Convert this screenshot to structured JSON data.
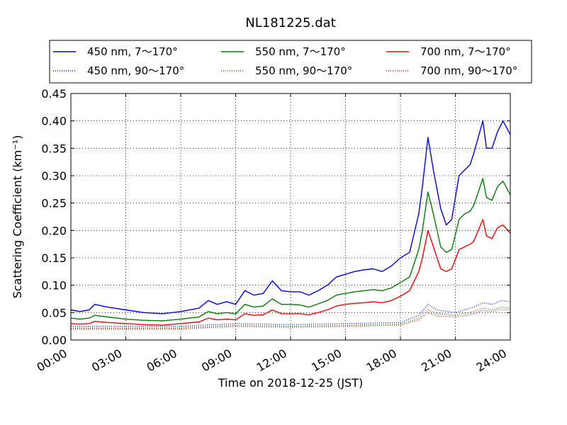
{
  "chart_data": {
    "type": "line",
    "title": "NL181225.dat",
    "xlabel": "Time on 2018-12-25 (JST)",
    "ylabel": "Scattering Coefficient (km⁻¹)",
    "xlim": [
      0,
      24
    ],
    "ylim": [
      0,
      0.45
    ],
    "grid": true,
    "legend_position": "top, above plot, 3 columns",
    "x_ticks": [
      0,
      3,
      6,
      9,
      12,
      15,
      18,
      21,
      24
    ],
    "x_tick_labels": [
      "00:00",
      "03:00",
      "06:00",
      "09:00",
      "12:00",
      "15:00",
      "18:00",
      "21:00",
      "24:00"
    ],
    "y_ticks": [
      0,
      0.05,
      0.1,
      0.15,
      0.2,
      0.25,
      0.3,
      0.35,
      0.4,
      0.45
    ],
    "y_tick_labels": [
      "0.00",
      "0.05",
      "0.10",
      "0.15",
      "0.20",
      "0.25",
      "0.30",
      "0.35",
      "0.40",
      "0.45"
    ],
    "series": [
      {
        "name": "450 nm, 7～170°",
        "color": "#0000ff",
        "style": "solid",
        "x": [
          0,
          0.5,
          1,
          1.3,
          2,
          3,
          4,
          5,
          6,
          7,
          7.5,
          8,
          8.5,
          9,
          9.5,
          10,
          10.5,
          11,
          11.5,
          12,
          12.5,
          13,
          13.5,
          14,
          14.5,
          15,
          15.5,
          16,
          16.5,
          17,
          17.5,
          18,
          18.5,
          19,
          19.2,
          19.5,
          19.8,
          20.2,
          20.5,
          20.8,
          21.2,
          21.5,
          21.8,
          22,
          22.5,
          22.7,
          23,
          23.3,
          23.6,
          24
        ],
        "y": [
          0.055,
          0.052,
          0.055,
          0.065,
          0.06,
          0.055,
          0.05,
          0.048,
          0.052,
          0.058,
          0.072,
          0.065,
          0.07,
          0.065,
          0.09,
          0.082,
          0.085,
          0.108,
          0.09,
          0.088,
          0.088,
          0.082,
          0.09,
          0.1,
          0.115,
          0.12,
          0.125,
          0.128,
          0.13,
          0.125,
          0.135,
          0.15,
          0.16,
          0.23,
          0.28,
          0.37,
          0.31,
          0.24,
          0.21,
          0.22,
          0.3,
          0.31,
          0.32,
          0.34,
          0.4,
          0.35,
          0.35,
          0.38,
          0.4,
          0.375
        ]
      },
      {
        "name": "450 nm, 90～170°",
        "color": "#0000ff",
        "style": "dotted",
        "x": [
          0,
          3,
          6,
          9,
          12,
          15,
          18,
          19,
          19.5,
          20,
          21,
          22,
          22.5,
          23,
          23.5,
          24
        ],
        "y": [
          0.025,
          0.025,
          0.025,
          0.03,
          0.028,
          0.03,
          0.032,
          0.045,
          0.065,
          0.055,
          0.05,
          0.06,
          0.068,
          0.065,
          0.072,
          0.07
        ]
      },
      {
        "name": "550 nm, 7～170°",
        "color": "#008000",
        "style": "solid",
        "x": [
          0,
          0.5,
          1,
          1.3,
          2,
          3,
          4,
          5,
          6,
          7,
          7.5,
          8,
          8.5,
          9,
          9.5,
          10,
          10.5,
          11,
          11.5,
          12,
          12.5,
          13,
          13.5,
          14,
          14.5,
          15,
          15.5,
          16,
          16.5,
          17,
          17.5,
          18,
          18.5,
          19,
          19.2,
          19.5,
          19.8,
          20.2,
          20.5,
          20.8,
          21.2,
          21.5,
          21.8,
          22,
          22.5,
          22.7,
          23,
          23.3,
          23.6,
          24
        ],
        "y": [
          0.04,
          0.038,
          0.04,
          0.045,
          0.042,
          0.038,
          0.036,
          0.035,
          0.038,
          0.042,
          0.052,
          0.048,
          0.05,
          0.048,
          0.065,
          0.06,
          0.062,
          0.075,
          0.065,
          0.065,
          0.064,
          0.06,
          0.066,
          0.072,
          0.082,
          0.085,
          0.088,
          0.09,
          0.092,
          0.09,
          0.095,
          0.105,
          0.115,
          0.165,
          0.2,
          0.27,
          0.23,
          0.17,
          0.16,
          0.165,
          0.22,
          0.23,
          0.235,
          0.245,
          0.295,
          0.26,
          0.255,
          0.28,
          0.29,
          0.265
        ]
      },
      {
        "name": "550 nm, 90～170°",
        "color": "#008000",
        "style": "dotted",
        "x": [
          0,
          3,
          6,
          9,
          12,
          15,
          18,
          19,
          19.5,
          20,
          21,
          22,
          22.5,
          23,
          23.5,
          24
        ],
        "y": [
          0.022,
          0.022,
          0.022,
          0.027,
          0.025,
          0.027,
          0.029,
          0.04,
          0.055,
          0.048,
          0.045,
          0.052,
          0.058,
          0.055,
          0.06,
          0.058
        ]
      },
      {
        "name": "700 nm, 7～170°",
        "color": "#ff0000",
        "style": "solid",
        "x": [
          0,
          0.5,
          1,
          1.3,
          2,
          3,
          4,
          5,
          6,
          7,
          7.5,
          8,
          8.5,
          9,
          9.5,
          10,
          10.5,
          11,
          11.5,
          12,
          12.5,
          13,
          13.5,
          14,
          14.5,
          15,
          15.5,
          16,
          16.5,
          17,
          17.5,
          18,
          18.5,
          19,
          19.2,
          19.5,
          19.8,
          20.2,
          20.5,
          20.8,
          21.2,
          21.5,
          21.8,
          22,
          22.5,
          22.7,
          23,
          23.3,
          23.6,
          24
        ],
        "y": [
          0.03,
          0.029,
          0.03,
          0.034,
          0.032,
          0.03,
          0.028,
          0.027,
          0.03,
          0.033,
          0.04,
          0.037,
          0.038,
          0.037,
          0.048,
          0.045,
          0.046,
          0.055,
          0.048,
          0.048,
          0.048,
          0.046,
          0.05,
          0.055,
          0.062,
          0.065,
          0.067,
          0.068,
          0.07,
          0.068,
          0.072,
          0.08,
          0.09,
          0.125,
          0.15,
          0.2,
          0.17,
          0.13,
          0.125,
          0.13,
          0.165,
          0.17,
          0.175,
          0.18,
          0.22,
          0.19,
          0.185,
          0.205,
          0.21,
          0.195
        ]
      },
      {
        "name": "700 nm, 90～170°",
        "color": "#ff0000",
        "style": "dotted",
        "x": [
          0,
          3,
          6,
          9,
          12,
          15,
          18,
          19,
          19.5,
          20,
          21,
          22,
          22.5,
          23,
          23.5,
          24
        ],
        "y": [
          0.02,
          0.02,
          0.02,
          0.025,
          0.023,
          0.025,
          0.027,
          0.037,
          0.05,
          0.044,
          0.042,
          0.048,
          0.054,
          0.052,
          0.056,
          0.055
        ]
      }
    ]
  }
}
